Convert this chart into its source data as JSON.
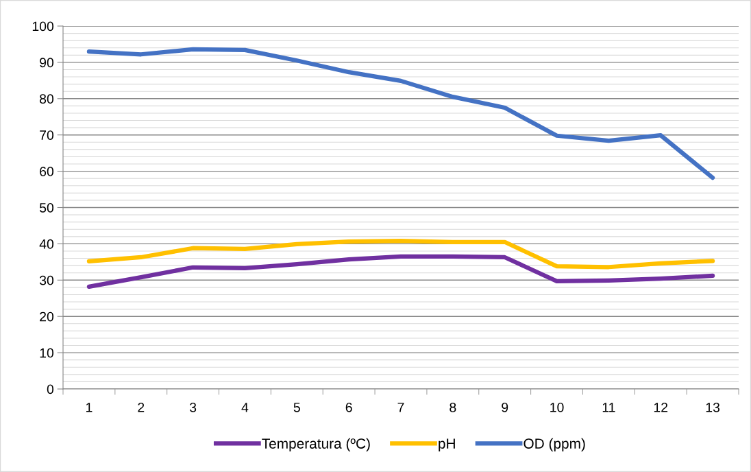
{
  "chart_data": {
    "type": "line",
    "categories": [
      "1",
      "2",
      "3",
      "4",
      "5",
      "6",
      "7",
      "8",
      "9",
      "10",
      "11",
      "12",
      "13"
    ],
    "series": [
      {
        "name": "Temperatura (ºC)",
        "color": "#7030a0",
        "values": [
          28.2,
          30.8,
          33.5,
          33.3,
          34.4,
          35.7,
          36.5,
          36.5,
          36.3,
          29.7,
          29.9,
          30.4,
          31.2
        ]
      },
      {
        "name": "pH",
        "color": "#ffc000",
        "values": [
          35.2,
          36.3,
          38.8,
          38.6,
          39.9,
          40.6,
          40.8,
          40.5,
          40.5,
          33.8,
          33.6,
          34.6,
          35.3
        ]
      },
      {
        "name": "OD (ppm)",
        "color": "#4472c4",
        "values": [
          93.0,
          92.2,
          93.6,
          93.4,
          90.5,
          87.3,
          84.9,
          80.5,
          77.5,
          69.8,
          68.4,
          69.9,
          58.2
        ]
      }
    ],
    "ylim": [
      0,
      100
    ],
    "yticks": [
      0,
      10,
      20,
      30,
      40,
      50,
      60,
      70,
      80,
      90,
      100
    ],
    "grid": "y",
    "legend": "bottom",
    "marker": "none",
    "line_style": "solid"
  }
}
